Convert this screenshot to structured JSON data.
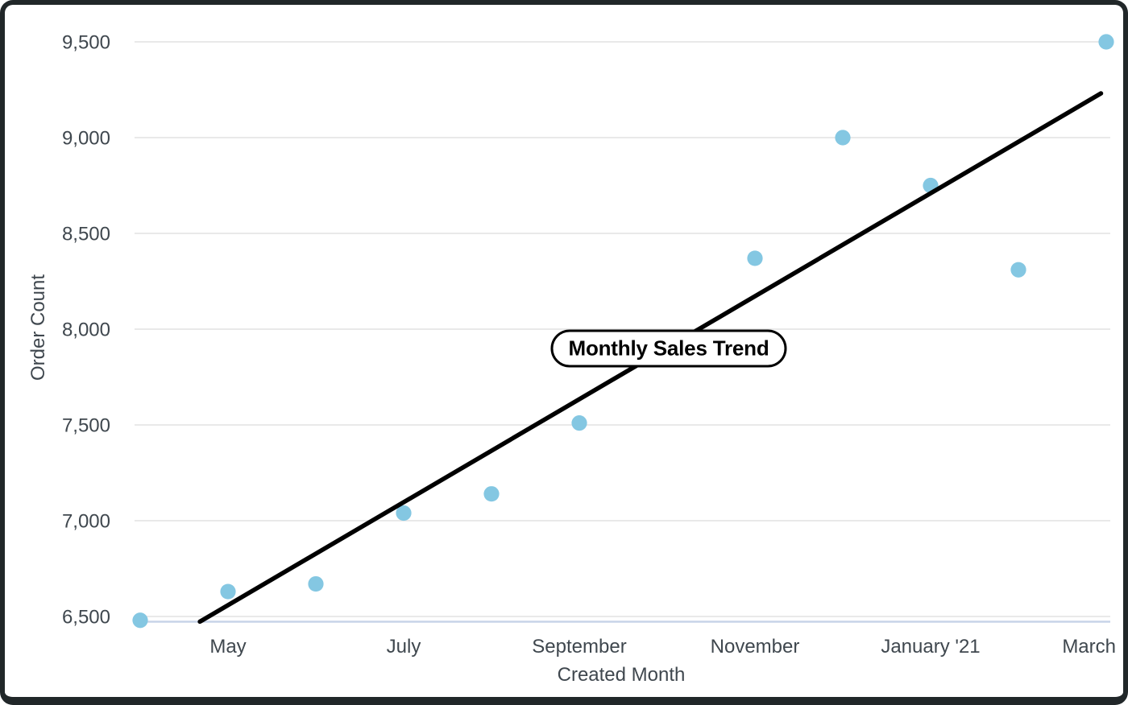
{
  "chart_data": {
    "type": "scatter",
    "trend_label": "Monthly Sales Trend",
    "xlabel": "Created Month",
    "ylabel": "Order Count",
    "x_axis": {
      "tick_labels": [
        "May",
        "July",
        "September",
        "November",
        "January '21",
        "March"
      ],
      "tick_month_index": [
        1,
        3,
        5,
        7,
        9,
        11
      ]
    },
    "y_axis": {
      "ticks": [
        6500,
        7000,
        7500,
        8000,
        8500,
        9000,
        9500
      ],
      "tick_labels": [
        "6,500",
        "7,000",
        "7,500",
        "8,000",
        "8,500",
        "9,000",
        "9,500"
      ],
      "ylim": [
        6470,
        9730
      ]
    },
    "points": [
      {
        "month": "April",
        "month_index": 0,
        "order_count": 6480
      },
      {
        "month": "May",
        "month_index": 1,
        "order_count": 6630
      },
      {
        "month": "June",
        "month_index": 2,
        "order_count": 6670
      },
      {
        "month": "July",
        "month_index": 3,
        "order_count": 7040
      },
      {
        "month": "August",
        "month_index": 4,
        "order_count": 7140
      },
      {
        "month": "September",
        "month_index": 5,
        "order_count": 7510
      },
      {
        "month": "November",
        "month_index": 7,
        "order_count": 8370
      },
      {
        "month": "December",
        "month_index": 8,
        "order_count": 9000
      },
      {
        "month": "January '21",
        "month_index": 9,
        "order_count": 8750
      },
      {
        "month": "February",
        "month_index": 10,
        "order_count": 8310
      },
      {
        "month": "March",
        "month_index": 11,
        "order_count": 9500
      }
    ],
    "trendline": {
      "start": {
        "month_index": 0.68,
        "order_count": 6473
      },
      "end": {
        "month_index": 10.94,
        "order_count": 9231
      }
    },
    "grid": true,
    "legend": "none",
    "colors": {
      "point": "#84c7e2",
      "trend_line": "#000000",
      "gridline": "#e9e9e9",
      "axis_line": "#c7d4e8",
      "text": "#3f474e",
      "frame": "#212729",
      "background": "#ffffff",
      "label_bg": "#ffffff",
      "label_border": "#000000"
    }
  }
}
